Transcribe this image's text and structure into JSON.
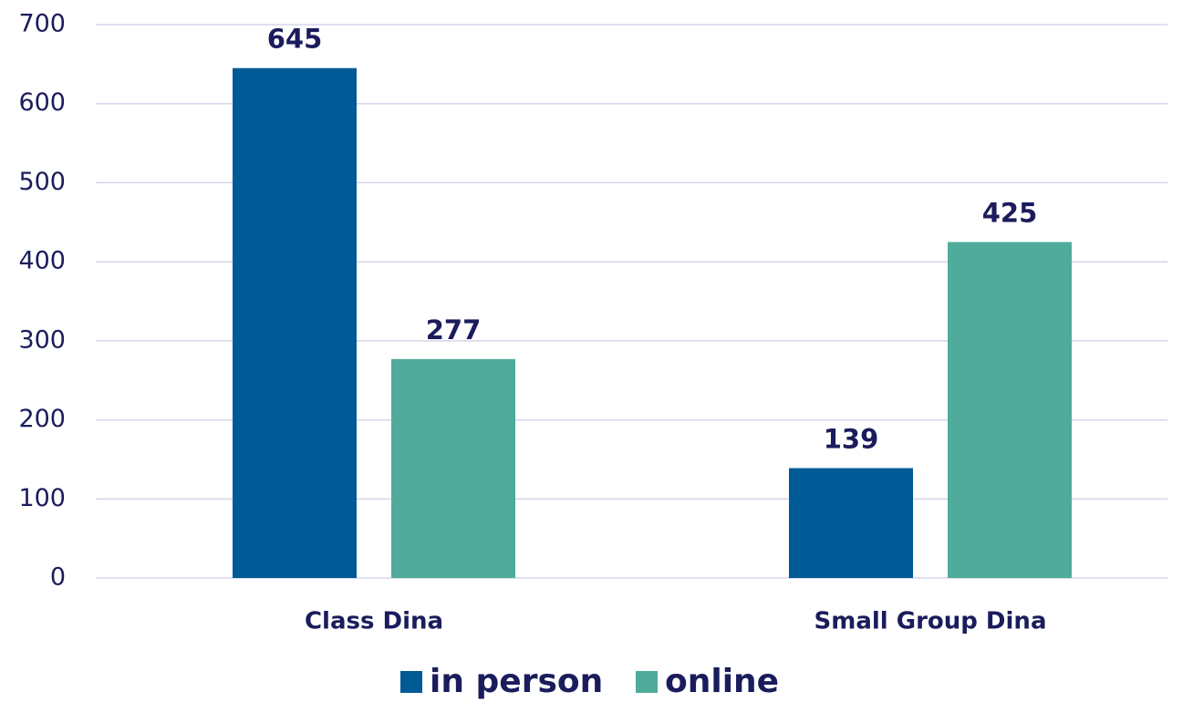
{
  "chart_data": {
    "type": "bar",
    "categories": [
      "Class Dina",
      "Small Group Dina"
    ],
    "series": [
      {
        "name": "in person",
        "color": "#005a96",
        "values": [
          645,
          139
        ]
      },
      {
        "name": "online",
        "color": "#50ab9b",
        "values": [
          277,
          425
        ]
      }
    ],
    "ylim": [
      0,
      700
    ],
    "yticks": [
      0,
      100,
      200,
      300,
      400,
      500,
      600,
      700
    ],
    "grid": true,
    "legend": "bottom"
  }
}
